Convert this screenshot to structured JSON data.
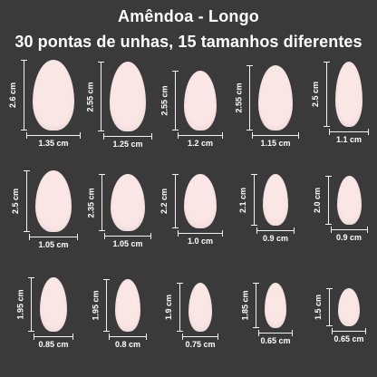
{
  "header": {
    "title": "Amêndoa - Longo",
    "subtitle": "30 pontas de unhas, 15 tamanhos diferentes"
  },
  "colors": {
    "background": "#3a3a3a",
    "nail": "#fbe6e6",
    "text": "#ffffff"
  },
  "nails": [
    {
      "height_label": "2.6 cm",
      "width_label": "1.35 cm"
    },
    {
      "height_label": "2.55 cm",
      "width_label": "1.25 cm"
    },
    {
      "height_label": "2.55 cm",
      "width_label": "1.2 cm"
    },
    {
      "height_label": "2.55 cm",
      "width_label": "1.15 cm"
    },
    {
      "height_label": "2.5 cm",
      "width_label": "1.1 cm"
    },
    {
      "height_label": "2.5 cm",
      "width_label": "1.05 cm"
    },
    {
      "height_label": "2.35 cm",
      "width_label": "1.05 cm"
    },
    {
      "height_label": "2.2 cm",
      "width_label": "1.0  cm"
    },
    {
      "height_label": "2.1 cm",
      "width_label": "0.9 cm"
    },
    {
      "height_label": "2.0 cm",
      "width_label": "0.9 cm"
    },
    {
      "height_label": "1.95 cm",
      "width_label": "0.85 cm"
    },
    {
      "height_label": "1.95 cm",
      "width_label": "0.8 cm"
    },
    {
      "height_label": "1.9 cm",
      "width_label": "0.75 cm"
    },
    {
      "height_label": "1.85 cm",
      "width_label": "0.65 cm"
    },
    {
      "height_label": "1.5 cm",
      "width_label": "0.65 cm"
    }
  ]
}
